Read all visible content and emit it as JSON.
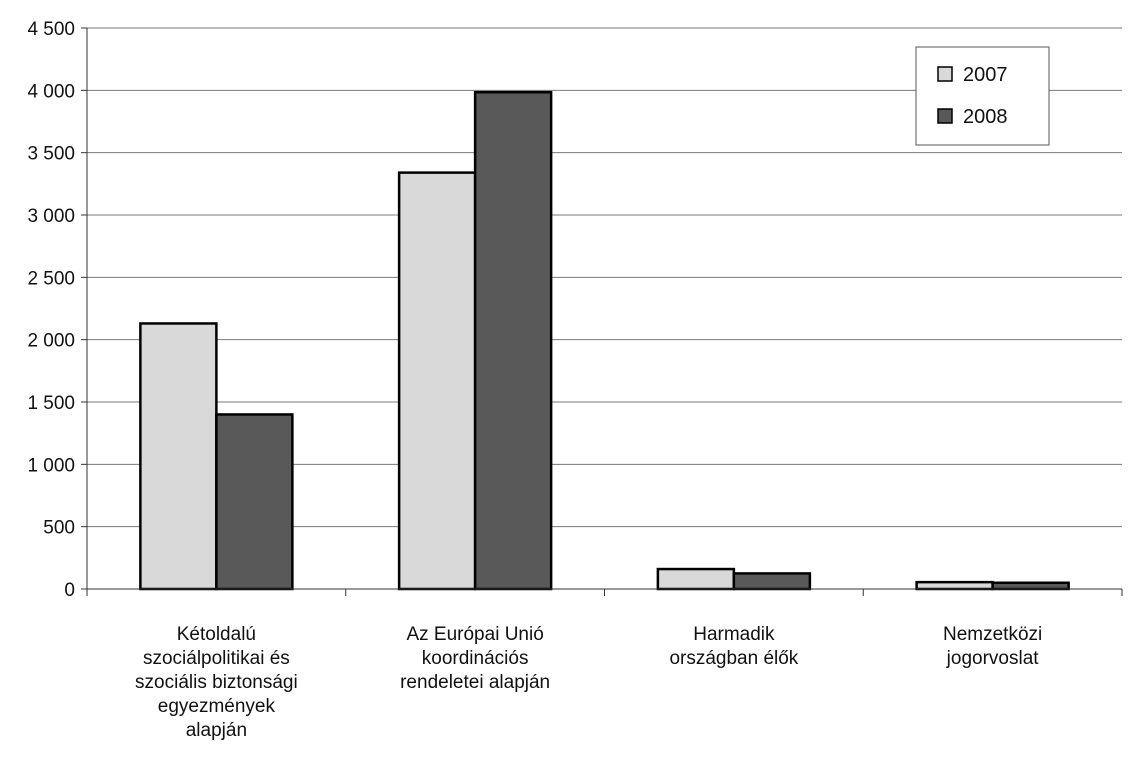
{
  "chart_data": {
    "type": "bar",
    "title": "",
    "xlabel": "",
    "ylabel": "",
    "ylim": [
      0,
      4500
    ],
    "yticks": [
      0,
      500,
      1000,
      1500,
      2000,
      2500,
      3000,
      3500,
      4000,
      4500
    ],
    "ytick_labels": [
      "0",
      "500",
      "1 000",
      "1 500",
      "2 000",
      "2 500",
      "3 000",
      "3 500",
      "4 000",
      "4 500"
    ],
    "grid": true,
    "legend_position": "top-right",
    "categories": [
      [
        "Kétoldalú",
        "szociálpolitikai és",
        "szociális biztonsági",
        "egyezmények",
        "alapján"
      ],
      [
        "Az Európai Unió",
        "koordinációs",
        "rendeletei alapján"
      ],
      [
        "Harmadik",
        "országban élők"
      ],
      [
        "Nemzetközi",
        "jogorvoslat"
      ]
    ],
    "series": [
      {
        "name": "2007",
        "color": "#d9d9d9",
        "values": [
          2130,
          3340,
          160,
          55
        ]
      },
      {
        "name": "2008",
        "color": "#595959",
        "values": [
          1400,
          3985,
          125,
          50
        ]
      }
    ]
  }
}
